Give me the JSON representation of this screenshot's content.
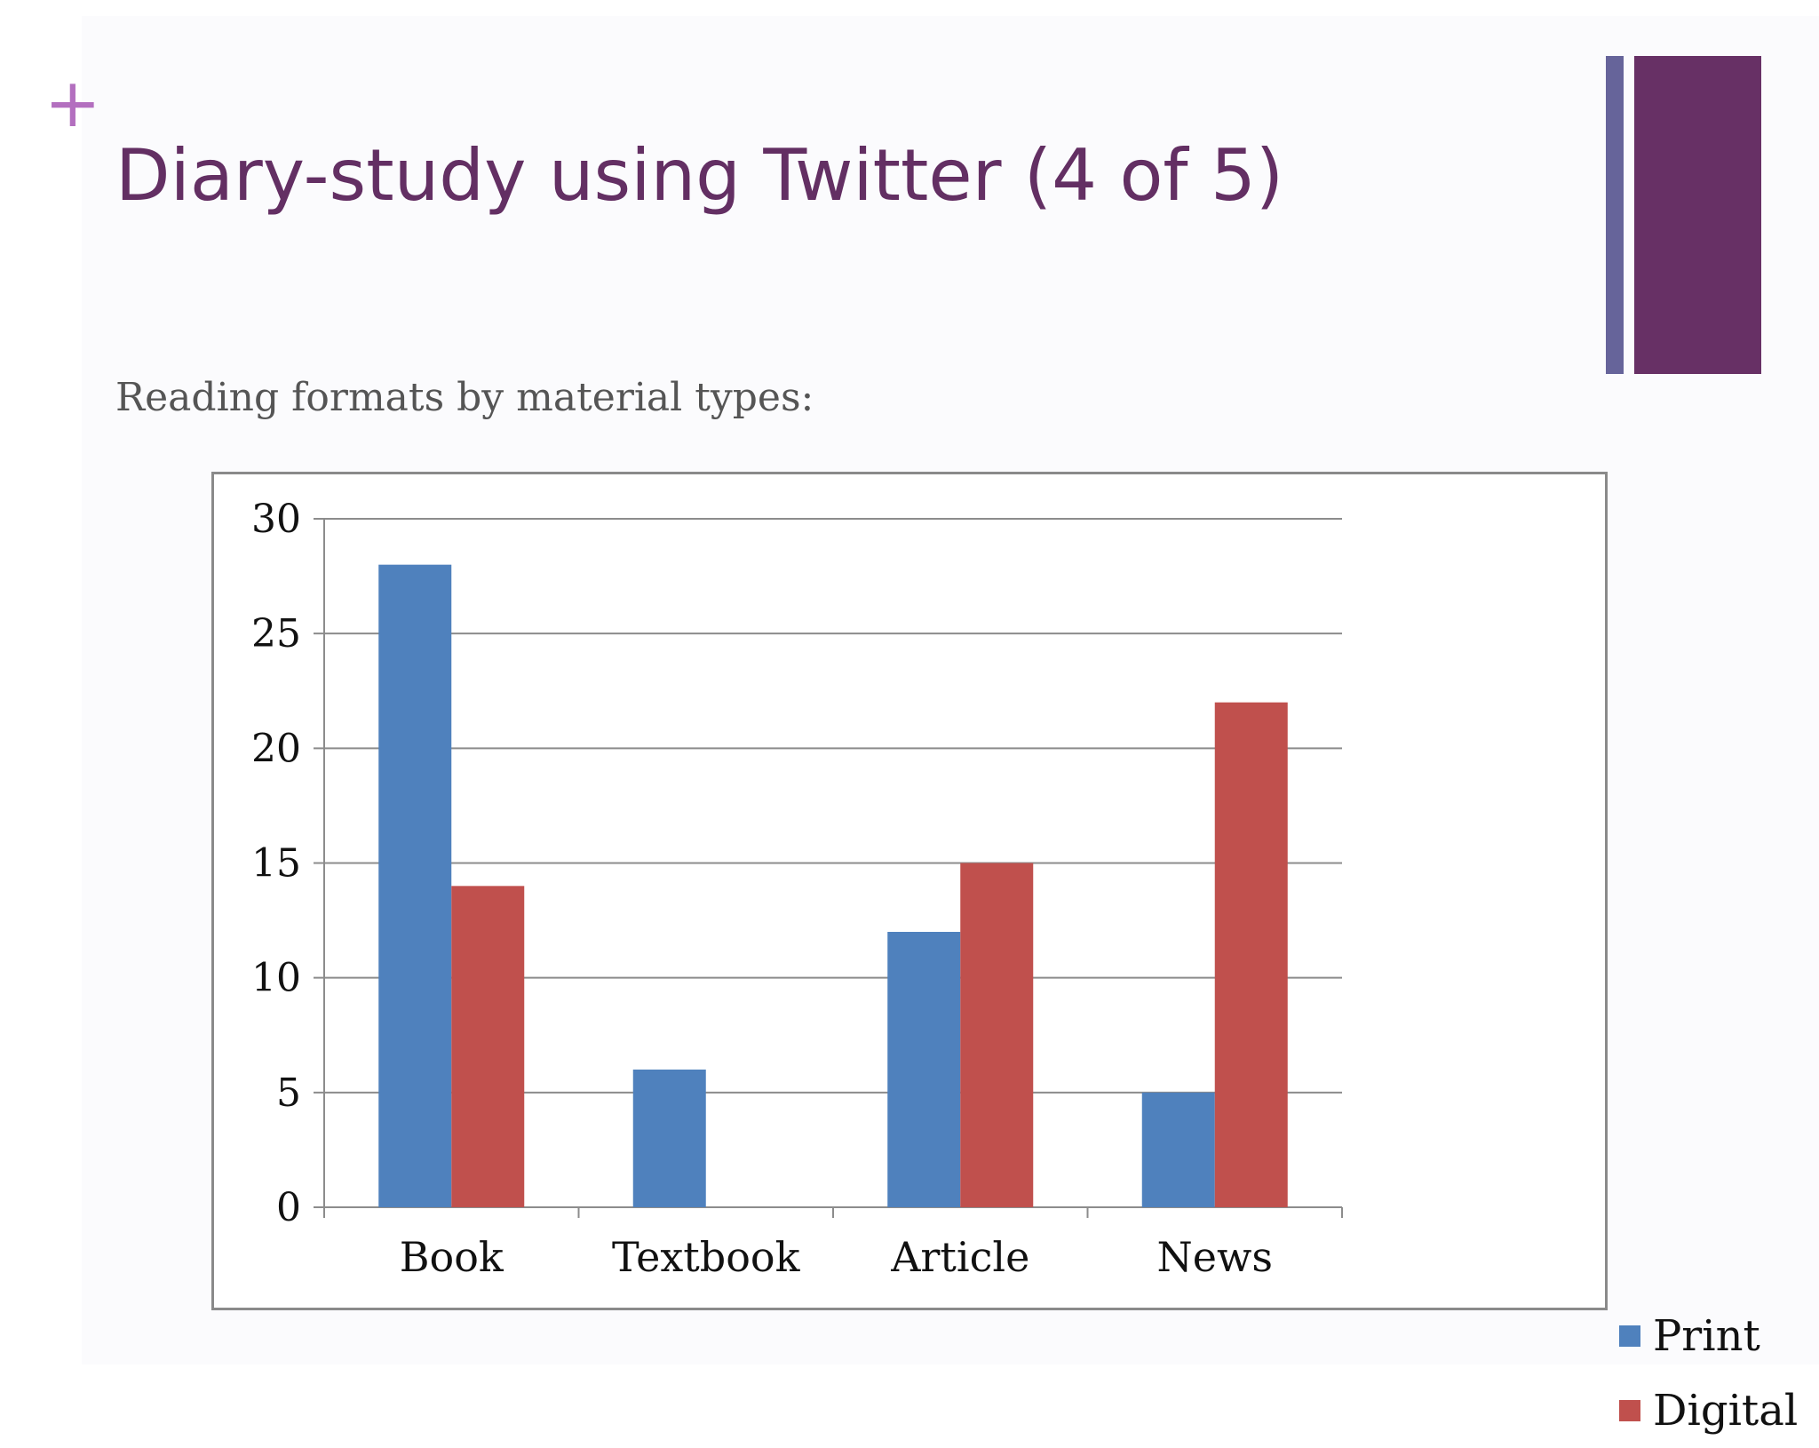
{
  "slide": {
    "plus_glyph": "+",
    "title": "Diary-study using Twitter (4 of 5)",
    "subtitle": "Reading formats by material types:",
    "accent_colors": {
      "title": "#632f63",
      "plus": "#b36fbf",
      "side_bar_thin": "#66649a",
      "side_bar_thick": "#673065"
    }
  },
  "chart_data": {
    "type": "bar",
    "categories": [
      "Book",
      "Textbook",
      "Article",
      "News"
    ],
    "series": [
      {
        "name": "Print",
        "color": "#4f81bd",
        "values": [
          28,
          6,
          12,
          5
        ]
      },
      {
        "name": "Digital",
        "color": "#c0504d",
        "values": [
          14,
          0,
          15,
          22
        ]
      }
    ],
    "y_ticks": [
      "0",
      "5",
      "10",
      "15",
      "20",
      "25",
      "30"
    ],
    "ylim": [
      0,
      30
    ],
    "grid": true,
    "legend_position": "right"
  }
}
